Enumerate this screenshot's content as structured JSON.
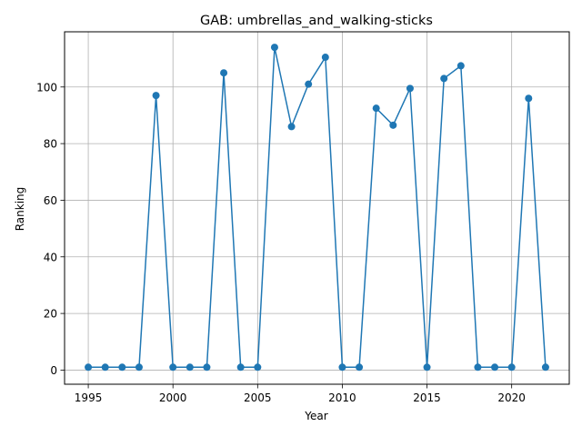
{
  "chart_data": {
    "type": "line",
    "title": "GAB: umbrellas_and_walking-sticks",
    "xlabel": "Year",
    "ylabel": "Ranking",
    "xlim": [
      1993.6,
      2023.4
    ],
    "ylim": [
      -5,
      119.5
    ],
    "xticks": [
      1995,
      2000,
      2005,
      2010,
      2015,
      2020
    ],
    "yticks": [
      0,
      20,
      40,
      60,
      80,
      100
    ],
    "grid": true,
    "line_color": "#1f77b4",
    "series": [
      {
        "x": [
          1995,
          1996,
          1997,
          1998,
          1999,
          2000,
          2001,
          2002,
          2003,
          2004,
          2005,
          2006,
          2007,
          2008,
          2009,
          2010,
          2011,
          2012,
          2013,
          2014,
          2015,
          2016,
          2017,
          2018,
          2019,
          2020,
          2021,
          2022
        ],
        "values": [
          1,
          1,
          1,
          1,
          97,
          1,
          1,
          1,
          105,
          1,
          1,
          114,
          86,
          101,
          110.5,
          1,
          1,
          92.5,
          86.5,
          99.5,
          1,
          103,
          107.5,
          1,
          1,
          1,
          96,
          1
        ]
      }
    ]
  }
}
